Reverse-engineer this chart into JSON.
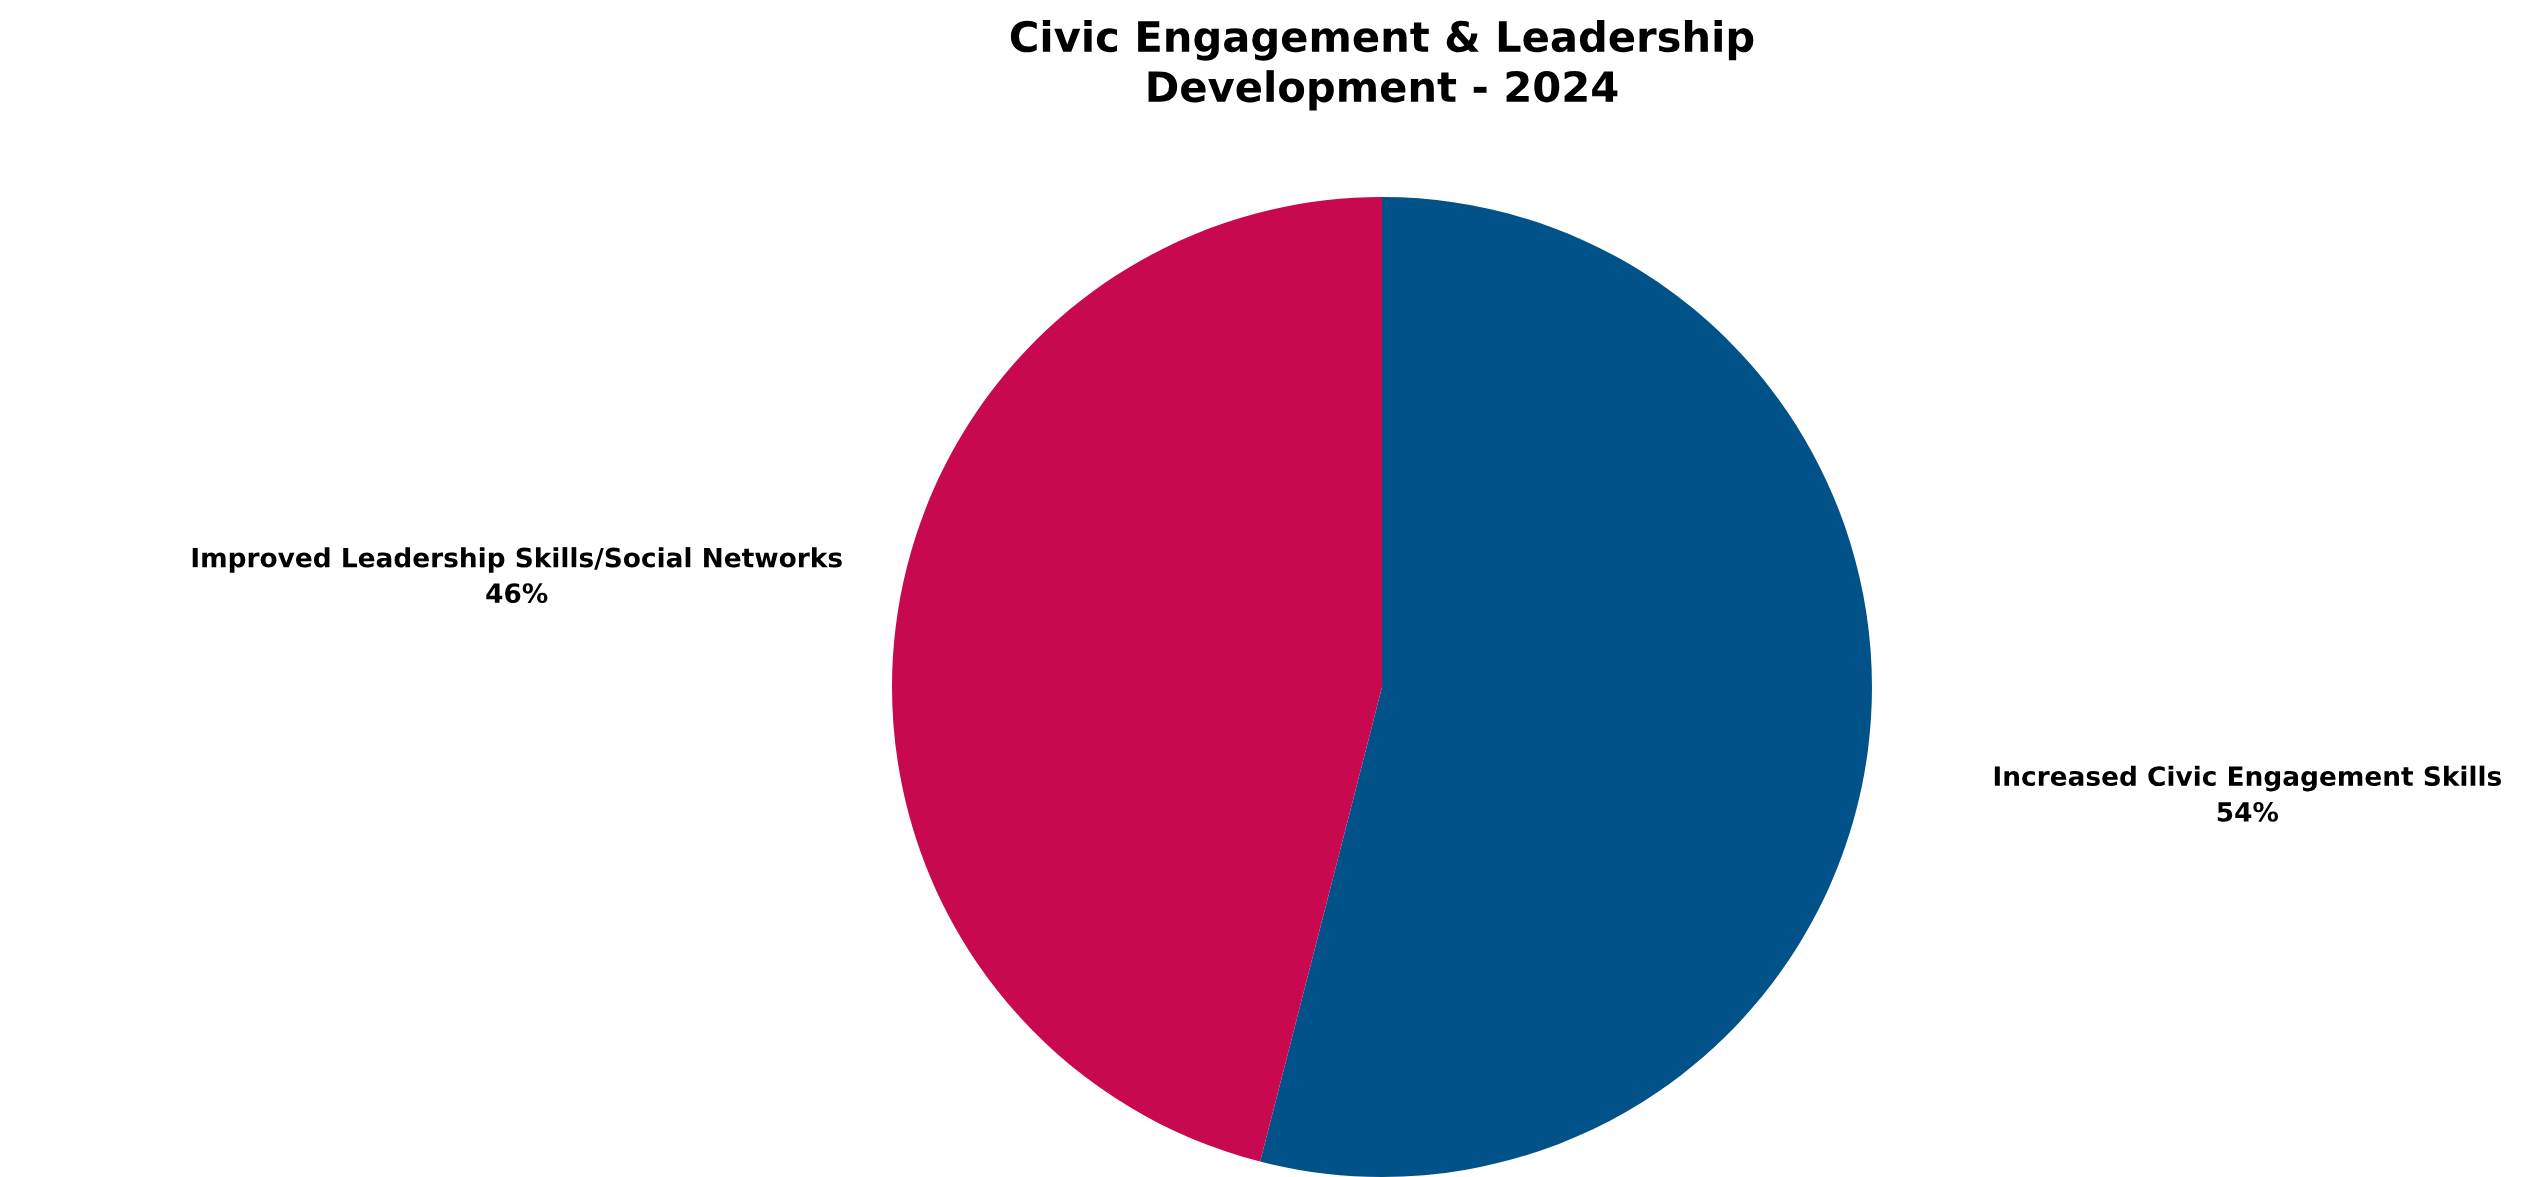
{
  "chart_data": {
    "type": "pie",
    "title": "Civic Engagement & Leadership\nDevelopment - 2024",
    "categories": [
      "Increased Civic Engagement Skills",
      "Improved Leadership Skills/Social Networks"
    ],
    "values": [
      54,
      46
    ],
    "value_labels": [
      "54%",
      "46%"
    ],
    "colors": [
      "#005288",
      "#c8084f"
    ],
    "legend": false
  }
}
